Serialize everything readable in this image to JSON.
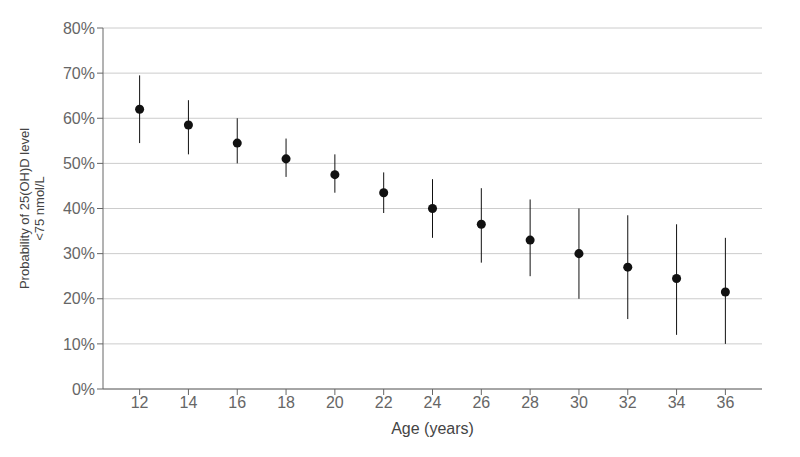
{
  "chart_data": {
    "type": "scatter",
    "x_label": "Age (years)",
    "y_label": "Probability of 25(OH)D level\n<75 nmol/L",
    "x": [
      12,
      14,
      16,
      18,
      20,
      22,
      24,
      26,
      28,
      30,
      32,
      34,
      36
    ],
    "values": [
      0.62,
      0.585,
      0.545,
      0.51,
      0.475,
      0.435,
      0.4,
      0.365,
      0.33,
      0.3,
      0.27,
      0.245,
      0.215
    ],
    "error_lower": [
      0.075,
      0.065,
      0.045,
      0.04,
      0.04,
      0.045,
      0.065,
      0.085,
      0.08,
      0.1,
      0.115,
      0.125,
      0.115
    ],
    "error_upper": [
      0.075,
      0.055,
      0.055,
      0.045,
      0.045,
      0.045,
      0.065,
      0.08,
      0.09,
      0.1,
      0.115,
      0.12,
      0.12
    ],
    "color": "#111111",
    "marker": "circle",
    "xlim": [
      10.5,
      37.5
    ],
    "ylim": [
      0.0,
      0.8
    ],
    "xticks": [
      12,
      14,
      16,
      18,
      20,
      22,
      24,
      26,
      28,
      30,
      32,
      34,
      36
    ],
    "yticks": [
      {
        "value": 0.0,
        "label": "0%"
      },
      {
        "value": 0.1,
        "label": "10%"
      },
      {
        "value": 0.2,
        "label": "20%"
      },
      {
        "value": 0.3,
        "label": "30%"
      },
      {
        "value": 0.4,
        "label": "40%"
      },
      {
        "value": 0.5,
        "label": "50%"
      },
      {
        "value": 0.6,
        "label": "60%"
      },
      {
        "value": 0.7,
        "label": "70%"
      },
      {
        "value": 0.8,
        "label": "80%"
      }
    ],
    "grid": true
  }
}
